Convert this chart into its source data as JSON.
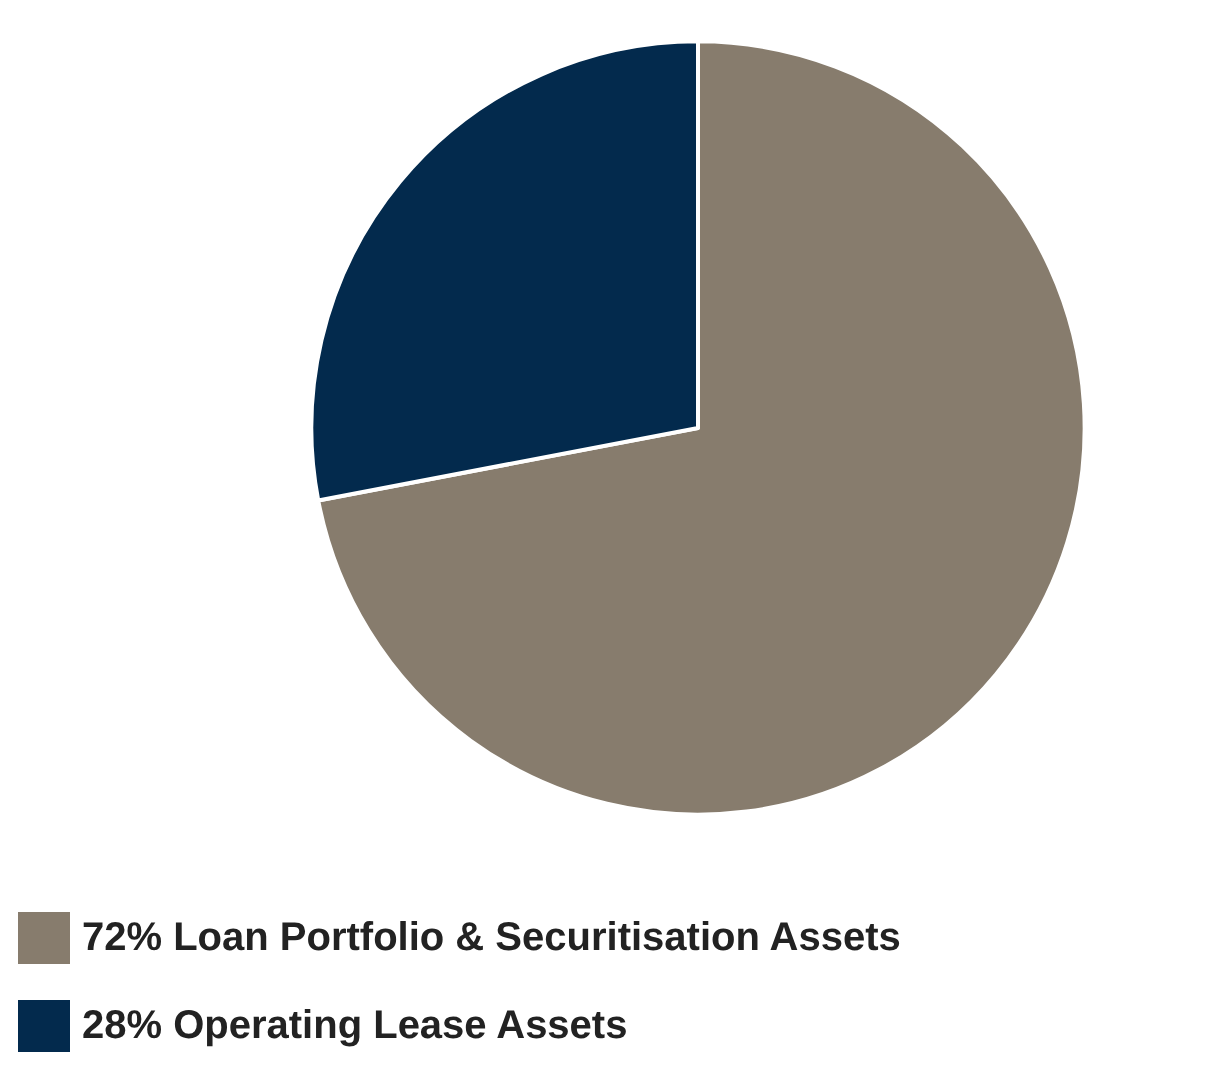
{
  "chart_data": {
    "type": "pie",
    "categories": [
      "72% Loan Portfolio & Securitisation Assets",
      "28% Operating Lease Assets"
    ],
    "values": [
      72,
      28
    ],
    "colors": [
      "#877c6d",
      "#032a4d"
    ],
    "legend": "bottom left"
  }
}
